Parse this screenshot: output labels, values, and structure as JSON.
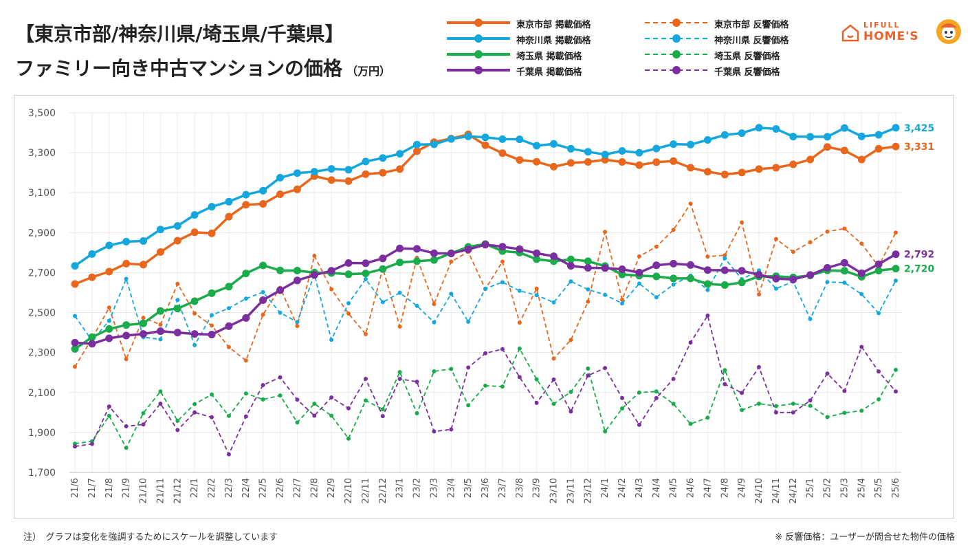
{
  "title": {
    "line1": "【東京市部/神奈川県/埼玉県/千葉県】",
    "line2": "ファミリー向き中古マンションの価格",
    "unit": "（万円）"
  },
  "logo": {
    "line1": "LIFULL",
    "line2": "HOME'S"
  },
  "footnote_left": "注）　グラフは変化を強調するためにスケールを調整しています",
  "footnote_right": "※ 反響価格：ユーザーが問合せた物件の価格",
  "colors": {
    "tokyo": "#e8671c",
    "kanagawa": "#13a7dd",
    "saitama": "#1aab4b",
    "chiba": "#7b2f9e"
  },
  "chart_data": {
    "type": "line",
    "ylim": [
      1700,
      3500
    ],
    "yticks": [
      "1,700",
      "1,900",
      "2,100",
      "2,300",
      "2,500",
      "2,700",
      "2,900",
      "3,100",
      "3,300",
      "3,500"
    ],
    "ytick_values": [
      1700,
      1900,
      2100,
      2300,
      2500,
      2700,
      2900,
      3100,
      3300,
      3500
    ],
    "grid": true,
    "categories": [
      "21/6",
      "21/7",
      "21/8",
      "21/9",
      "21/10",
      "21/11",
      "21/12",
      "22/1",
      "22/2",
      "22/3",
      "22/4",
      "22/5",
      "22/6",
      "22/7",
      "22/8",
      "22/9",
      "22/10",
      "22/11",
      "22/12",
      "23/1",
      "23/2",
      "23/3",
      "23/4",
      "23/5",
      "23/6",
      "23/7",
      "23/8",
      "23/9",
      "23/10",
      "23/11",
      "23/12",
      "24/1",
      "24/2",
      "24/3",
      "24/4",
      "24/5",
      "24/6",
      "24/7",
      "24/8",
      "24/9",
      "24/10",
      "24/11",
      "24/12",
      "25/1",
      "25/2",
      "25/3",
      "25/4",
      "25/5",
      "25/6"
    ],
    "series": [
      {
        "name": "東京市部 掲載価格",
        "color_key": "tokyo",
        "dashed": false,
        "values": [
          2643,
          2677,
          2705,
          2745,
          2740,
          2803,
          2860,
          2902,
          2897,
          2980,
          3040,
          3044,
          3092,
          3117,
          3183,
          3163,
          3158,
          3193,
          3200,
          3218,
          3308,
          3353,
          3371,
          3392,
          3338,
          3298,
          3264,
          3255,
          3230,
          3249,
          3254,
          3265,
          3254,
          3238,
          3253,
          3258,
          3225,
          3205,
          3191,
          3201,
          3218,
          3225,
          3242,
          3266,
          3329,
          3311,
          3266,
          3320,
          3331
        ],
        "end_label": "3,331"
      },
      {
        "name": "神奈川県 掲載価格",
        "color_key": "kanagawa",
        "dashed": false,
        "values": [
          2734,
          2793,
          2836,
          2855,
          2858,
          2916,
          2934,
          2989,
          3030,
          3055,
          3090,
          3110,
          3175,
          3198,
          3205,
          3219,
          3215,
          3256,
          3274,
          3295,
          3341,
          3342,
          3369,
          3382,
          3377,
          3368,
          3367,
          3335,
          3344,
          3320,
          3305,
          3291,
          3309,
          3300,
          3321,
          3343,
          3341,
          3364,
          3389,
          3398,
          3425,
          3419,
          3381,
          3380,
          3380,
          3424,
          3382,
          3390,
          3425
        ],
        "end_label": "3,425"
      },
      {
        "name": "埼玉県 掲載価格",
        "color_key": "saitama",
        "dashed": false,
        "values": [
          2318,
          2377,
          2418,
          2438,
          2446,
          2508,
          2520,
          2557,
          2597,
          2630,
          2696,
          2736,
          2711,
          2710,
          2700,
          2698,
          2692,
          2696,
          2718,
          2751,
          2757,
          2763,
          2797,
          2829,
          2843,
          2808,
          2800,
          2767,
          2757,
          2766,
          2757,
          2733,
          2691,
          2685,
          2681,
          2671,
          2671,
          2643,
          2638,
          2651,
          2681,
          2682,
          2676,
          2686,
          2711,
          2709,
          2679,
          2710,
          2720
        ],
        "end_label": "2,720"
      },
      {
        "name": "千葉県 掲載価格",
        "color_key": "chiba",
        "dashed": false,
        "values": [
          2349,
          2344,
          2371,
          2385,
          2393,
          2407,
          2400,
          2393,
          2390,
          2432,
          2473,
          2562,
          2612,
          2661,
          2688,
          2709,
          2748,
          2747,
          2771,
          2821,
          2819,
          2797,
          2796,
          2816,
          2840,
          2830,
          2817,
          2797,
          2782,
          2734,
          2724,
          2723,
          2717,
          2700,
          2737,
          2745,
          2738,
          2713,
          2712,
          2709,
          2689,
          2670,
          2666,
          2688,
          2724,
          2749,
          2697,
          2742,
          2792
        ],
        "end_label": "2,792"
      },
      {
        "name": "東京市部 反響価格",
        "color_key": "tokyo",
        "dashed": true,
        "values": [
          2229,
          2370,
          2525,
          2267,
          2474,
          2440,
          2644,
          2496,
          2435,
          2327,
          2260,
          2490,
          2624,
          2433,
          2784,
          2617,
          2495,
          2392,
          2722,
          2430,
          2774,
          2543,
          2755,
          2804,
          2618,
          2755,
          2450,
          2620,
          2270,
          2363,
          2555,
          2904,
          2565,
          2781,
          2830,
          2914,
          3045,
          2780,
          2787,
          2951,
          2591,
          2868,
          2804,
          2852,
          2905,
          2920,
          2845,
          2731,
          2900
        ]
      },
      {
        "name": "神奈川県 反響価格",
        "color_key": "kanagawa",
        "dashed": true,
        "values": [
          2483,
          2359,
          2459,
          2669,
          2377,
          2366,
          2563,
          2337,
          2487,
          2522,
          2570,
          2602,
          2499,
          2453,
          2690,
          2364,
          2547,
          2667,
          2552,
          2599,
          2534,
          2451,
          2594,
          2454,
          2620,
          2652,
          2609,
          2587,
          2551,
          2656,
          2616,
          2589,
          2546,
          2645,
          2577,
          2640,
          2685,
          2613,
          2772,
          2667,
          2711,
          2620,
          2655,
          2468,
          2653,
          2650,
          2592,
          2497,
          2660
        ]
      },
      {
        "name": "埼玉県 反響価格",
        "color_key": "saitama",
        "dashed": true,
        "values": [
          1844,
          1856,
          1983,
          1823,
          1997,
          2105,
          1958,
          2042,
          2090,
          1983,
          2095,
          2065,
          2085,
          1950,
          2044,
          1984,
          1869,
          2060,
          2016,
          2202,
          1996,
          2206,
          2218,
          2036,
          2134,
          2130,
          2320,
          2166,
          2043,
          2103,
          2220,
          1905,
          2020,
          2100,
          2105,
          2043,
          1943,
          1974,
          2212,
          2012,
          2044,
          2032,
          2044,
          2034,
          1977,
          1998,
          2009,
          2066,
          2213
        ]
      },
      {
        "name": "千葉県 反響価格",
        "color_key": "chiba",
        "dashed": true,
        "values": [
          1830,
          1843,
          2030,
          1931,
          1940,
          2044,
          1912,
          2000,
          1976,
          1791,
          1980,
          2137,
          2176,
          2064,
          1984,
          2075,
          2021,
          2168,
          1982,
          2168,
          2154,
          1905,
          1915,
          2225,
          2296,
          2317,
          2177,
          2048,
          2165,
          2005,
          2185,
          2222,
          2072,
          1938,
          2072,
          2168,
          2350,
          2485,
          2142,
          2098,
          2227,
          2000,
          2000,
          2060,
          2195,
          2108,
          2328,
          2205,
          2105
        ]
      }
    ]
  }
}
